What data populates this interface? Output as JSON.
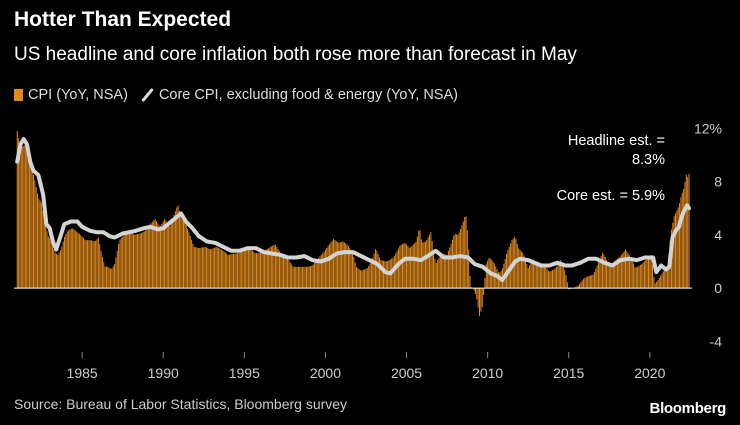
{
  "chart_data": {
    "type": "bar",
    "title": "Hotter Than Expected",
    "subtitle": "US headline and core inflation both rose more than forecast in May",
    "series": [
      {
        "name": "CPI (YoY, NSA)",
        "kind": "bar",
        "color": "#e08a1e",
        "points": [
          [
            1981.0,
            11.8
          ],
          [
            1981.2,
            10.5
          ],
          [
            1981.5,
            10.8
          ],
          [
            1981.7,
            10.2
          ],
          [
            1981.9,
            9.0
          ],
          [
            1982.1,
            8.0
          ],
          [
            1982.3,
            6.8
          ],
          [
            1982.5,
            6.4
          ],
          [
            1982.7,
            5.0
          ],
          [
            1982.9,
            3.9
          ],
          [
            1983.1,
            3.6
          ],
          [
            1983.3,
            2.7
          ],
          [
            1983.5,
            2.5
          ],
          [
            1983.7,
            2.9
          ],
          [
            1983.9,
            3.8
          ],
          [
            1984.1,
            4.3
          ],
          [
            1984.4,
            4.5
          ],
          [
            1984.7,
            4.2
          ],
          [
            1984.9,
            4.0
          ],
          [
            1985.2,
            3.6
          ],
          [
            1985.5,
            3.6
          ],
          [
            1985.8,
            3.5
          ],
          [
            1986.0,
            3.8
          ],
          [
            1986.2,
            2.6
          ],
          [
            1986.4,
            1.6
          ],
          [
            1986.6,
            1.6
          ],
          [
            1986.8,
            1.4
          ],
          [
            1987.0,
            1.8
          ],
          [
            1987.3,
            3.6
          ],
          [
            1987.6,
            4.0
          ],
          [
            1987.9,
            4.4
          ],
          [
            1988.2,
            4.0
          ],
          [
            1988.6,
            4.1
          ],
          [
            1988.9,
            4.3
          ],
          [
            1989.2,
            4.8
          ],
          [
            1989.5,
            5.2
          ],
          [
            1989.8,
            4.6
          ],
          [
            1990.1,
            5.2
          ],
          [
            1990.4,
            4.6
          ],
          [
            1990.7,
            5.6
          ],
          [
            1990.9,
            6.3
          ],
          [
            1991.1,
            5.3
          ],
          [
            1991.4,
            4.8
          ],
          [
            1991.7,
            3.8
          ],
          [
            1991.9,
            3.1
          ],
          [
            1992.2,
            3.0
          ],
          [
            1992.6,
            3.1
          ],
          [
            1992.9,
            2.9
          ],
          [
            1993.3,
            3.1
          ],
          [
            1993.7,
            2.8
          ],
          [
            1994.0,
            2.5
          ],
          [
            1994.5,
            2.6
          ],
          [
            1994.9,
            2.7
          ],
          [
            1995.3,
            3.0
          ],
          [
            1995.7,
            2.6
          ],
          [
            1996.1,
            2.7
          ],
          [
            1996.5,
            3.0
          ],
          [
            1996.9,
            3.3
          ],
          [
            1997.3,
            2.5
          ],
          [
            1997.7,
            2.2
          ],
          [
            1998.0,
            1.6
          ],
          [
            1998.5,
            1.6
          ],
          [
            1998.9,
            1.6
          ],
          [
            1999.2,
            1.7
          ],
          [
            1999.6,
            2.3
          ],
          [
            1999.9,
            2.7
          ],
          [
            2000.2,
            3.2
          ],
          [
            2000.5,
            3.7
          ],
          [
            2000.8,
            3.4
          ],
          [
            2001.1,
            3.5
          ],
          [
            2001.4,
            3.2
          ],
          [
            2001.7,
            2.6
          ],
          [
            2001.9,
            1.6
          ],
          [
            2002.2,
            1.3
          ],
          [
            2002.6,
            1.5
          ],
          [
            2002.9,
            2.2
          ],
          [
            2003.1,
            3.0
          ],
          [
            2003.4,
            2.1
          ],
          [
            2003.8,
            2.0
          ],
          [
            2004.2,
            2.3
          ],
          [
            2004.6,
            3.2
          ],
          [
            2004.9,
            3.4
          ],
          [
            2005.2,
            3.0
          ],
          [
            2005.6,
            3.5
          ],
          [
            2005.8,
            4.6
          ],
          [
            2005.95,
            3.4
          ],
          [
            2006.2,
            3.5
          ],
          [
            2006.5,
            4.2
          ],
          [
            2006.8,
            1.8
          ],
          [
            2006.95,
            2.2
          ],
          [
            2007.2,
            2.6
          ],
          [
            2007.5,
            2.5
          ],
          [
            2007.8,
            3.5
          ],
          [
            2007.95,
            4.1
          ],
          [
            2008.2,
            4.0
          ],
          [
            2008.5,
            5.0
          ],
          [
            2008.65,
            5.6
          ],
          [
            2008.8,
            3.7
          ],
          [
            2008.95,
            0.1
          ],
          [
            2009.1,
            0.0
          ],
          [
            2009.3,
            -0.6
          ],
          [
            2009.5,
            -2.1
          ],
          [
            2009.7,
            -1.3
          ],
          [
            2009.9,
            1.8
          ],
          [
            2010.1,
            2.3
          ],
          [
            2010.4,
            1.9
          ],
          [
            2010.7,
            1.1
          ],
          [
            2010.9,
            1.4
          ],
          [
            2011.2,
            2.7
          ],
          [
            2011.5,
            3.6
          ],
          [
            2011.7,
            3.9
          ],
          [
            2011.9,
            3.0
          ],
          [
            2012.2,
            2.6
          ],
          [
            2012.5,
            1.5
          ],
          [
            2012.8,
            2.2
          ],
          [
            2013.2,
            1.6
          ],
          [
            2013.5,
            1.8
          ],
          [
            2013.8,
            1.2
          ],
          [
            2014.2,
            1.5
          ],
          [
            2014.5,
            2.1
          ],
          [
            2014.8,
            1.2
          ],
          [
            2015.0,
            -0.1
          ],
          [
            2015.3,
            0.0
          ],
          [
            2015.6,
            0.2
          ],
          [
            2015.9,
            0.7
          ],
          [
            2016.2,
            0.9
          ],
          [
            2016.5,
            1.0
          ],
          [
            2016.9,
            2.1
          ],
          [
            2017.1,
            2.7
          ],
          [
            2017.5,
            1.7
          ],
          [
            2017.9,
            2.1
          ],
          [
            2018.2,
            2.4
          ],
          [
            2018.5,
            2.9
          ],
          [
            2018.9,
            2.2
          ],
          [
            2019.1,
            1.5
          ],
          [
            2019.5,
            1.8
          ],
          [
            2019.9,
            2.3
          ],
          [
            2020.1,
            2.5
          ],
          [
            2020.3,
            0.3
          ],
          [
            2020.5,
            0.6
          ],
          [
            2020.8,
            1.2
          ],
          [
            2021.1,
            1.7
          ],
          [
            2021.3,
            4.2
          ],
          [
            2021.5,
            5.4
          ],
          [
            2021.8,
            6.2
          ],
          [
            2021.95,
            7.0
          ],
          [
            2022.1,
            7.5
          ],
          [
            2022.25,
            8.5
          ],
          [
            2022.35,
            8.3
          ],
          [
            2022.42,
            8.6
          ]
        ]
      },
      {
        "name": "Core CPI, excluding food & energy (YoY, NSA)",
        "kind": "line",
        "color": "#d9d9d9",
        "points": [
          [
            1981.0,
            9.5
          ],
          [
            1981.2,
            10.8
          ],
          [
            1981.4,
            11.2
          ],
          [
            1981.6,
            10.8
          ],
          [
            1981.8,
            9.5
          ],
          [
            1982.0,
            8.8
          ],
          [
            1982.3,
            8.5
          ],
          [
            1982.6,
            7.0
          ],
          [
            1982.8,
            4.8
          ],
          [
            1983.0,
            4.5
          ],
          [
            1983.2,
            3.5
          ],
          [
            1983.4,
            2.9
          ],
          [
            1983.7,
            4.0
          ],
          [
            1983.9,
            4.8
          ],
          [
            1984.3,
            5.0
          ],
          [
            1984.7,
            5.0
          ],
          [
            1985.0,
            4.6
          ],
          [
            1985.5,
            4.3
          ],
          [
            1985.9,
            4.2
          ],
          [
            1986.3,
            4.2
          ],
          [
            1986.7,
            3.9
          ],
          [
            1987.0,
            3.8
          ],
          [
            1987.5,
            4.1
          ],
          [
            1987.9,
            4.2
          ],
          [
            1988.3,
            4.3
          ],
          [
            1988.8,
            4.5
          ],
          [
            1989.2,
            4.6
          ],
          [
            1989.7,
            4.4
          ],
          [
            1990.0,
            4.5
          ],
          [
            1990.4,
            4.9
          ],
          [
            1990.8,
            5.3
          ],
          [
            1991.1,
            5.6
          ],
          [
            1991.4,
            5.0
          ],
          [
            1991.8,
            4.5
          ],
          [
            1992.2,
            3.9
          ],
          [
            1992.7,
            3.5
          ],
          [
            1993.2,
            3.4
          ],
          [
            1993.7,
            3.1
          ],
          [
            1994.2,
            2.8
          ],
          [
            1994.7,
            2.8
          ],
          [
            1995.2,
            3.0
          ],
          [
            1995.7,
            3.0
          ],
          [
            1996.2,
            2.7
          ],
          [
            1996.7,
            2.6
          ],
          [
            1997.2,
            2.5
          ],
          [
            1997.7,
            2.3
          ],
          [
            1998.2,
            2.3
          ],
          [
            1998.7,
            2.4
          ],
          [
            1999.2,
            2.1
          ],
          [
            1999.7,
            2.0
          ],
          [
            2000.2,
            2.2
          ],
          [
            2000.7,
            2.6
          ],
          [
            2001.2,
            2.7
          ],
          [
            2001.7,
            2.7
          ],
          [
            2002.2,
            2.4
          ],
          [
            2002.7,
            2.1
          ],
          [
            2003.2,
            1.8
          ],
          [
            2003.7,
            1.2
          ],
          [
            2004.0,
            1.1
          ],
          [
            2004.5,
            1.8
          ],
          [
            2004.9,
            2.2
          ],
          [
            2005.4,
            2.2
          ],
          [
            2005.9,
            2.1
          ],
          [
            2006.3,
            2.4
          ],
          [
            2006.8,
            2.8
          ],
          [
            2007.3,
            2.3
          ],
          [
            2007.8,
            2.3
          ],
          [
            2008.3,
            2.4
          ],
          [
            2008.8,
            2.3
          ],
          [
            2009.2,
            1.8
          ],
          [
            2009.7,
            1.6
          ],
          [
            2010.2,
            1.1
          ],
          [
            2010.6,
            0.9
          ],
          [
            2010.9,
            0.6
          ],
          [
            2011.3,
            1.3
          ],
          [
            2011.7,
            2.0
          ],
          [
            2012.0,
            2.2
          ],
          [
            2012.5,
            2.1
          ],
          [
            2012.9,
            1.9
          ],
          [
            2013.3,
            1.7
          ],
          [
            2013.8,
            1.7
          ],
          [
            2014.3,
            1.9
          ],
          [
            2014.8,
            1.7
          ],
          [
            2015.2,
            1.7
          ],
          [
            2015.7,
            1.9
          ],
          [
            2016.2,
            2.2
          ],
          [
            2016.7,
            2.2
          ],
          [
            2017.2,
            1.9
          ],
          [
            2017.7,
            1.7
          ],
          [
            2018.2,
            2.1
          ],
          [
            2018.7,
            2.2
          ],
          [
            2019.2,
            2.1
          ],
          [
            2019.7,
            2.3
          ],
          [
            2020.2,
            2.3
          ],
          [
            2020.4,
            1.2
          ],
          [
            2020.7,
            1.7
          ],
          [
            2021.0,
            1.4
          ],
          [
            2021.2,
            1.6
          ],
          [
            2021.4,
            3.8
          ],
          [
            2021.6,
            4.3
          ],
          [
            2021.8,
            4.6
          ],
          [
            2022.0,
            5.5
          ],
          [
            2022.2,
            6.0
          ],
          [
            2022.3,
            6.2
          ],
          [
            2022.42,
            6.0
          ]
        ]
      }
    ],
    "legend": [
      "CPI (YoY, NSA)",
      "Core CPI, excluding food & energy (YoY, NSA)"
    ],
    "x_ticks": [
      "1985",
      "1990",
      "1995",
      "2000",
      "2005",
      "2010",
      "2015",
      "2020"
    ],
    "y_ticks": [
      "12%",
      "8",
      "4",
      "0",
      "-4"
    ],
    "xlim": [
      1980.8,
      2022.6
    ],
    "ylim": [
      -4.8,
      13
    ],
    "annotations": {
      "headline_line1": "Headline est. =",
      "headline_line2": "8.3%",
      "core": "Core est. = 5.9%"
    },
    "source": "Source: Bureau of Labor Statistics, Bloomberg survey",
    "brand": "Bloomberg"
  }
}
